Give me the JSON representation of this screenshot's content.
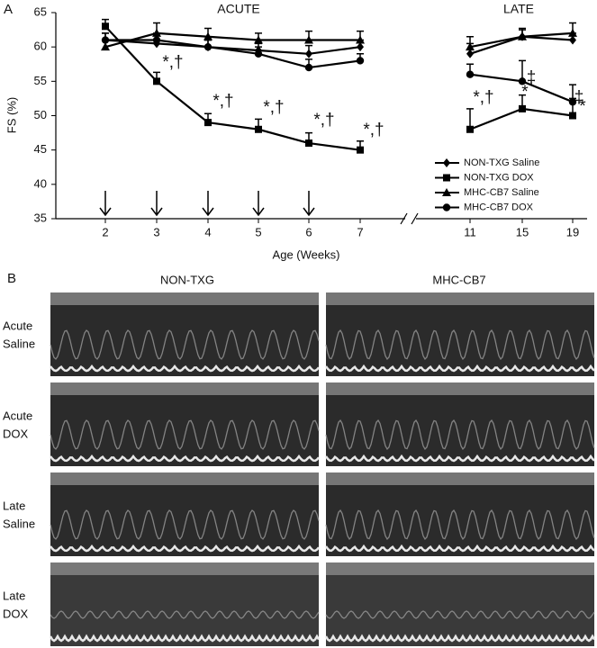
{
  "panel_a_label": "A",
  "chart_data": {
    "type": "line",
    "group_labels": [
      "ACUTE",
      "LATE"
    ],
    "ylabel": "FS (%)",
    "xlabel": "Age (Weeks)",
    "categories": [
      "2",
      "3",
      "4",
      "5",
      "6",
      "7",
      "11",
      "15",
      "19"
    ],
    "ylim": [
      35,
      65
    ],
    "yticks": [
      35,
      40,
      45,
      50,
      55,
      60,
      65
    ],
    "series": [
      {
        "name": "NON-TXG Saline",
        "marker": "diamond",
        "color": "#000000",
        "values": [
          61,
          60.5,
          60,
          59.5,
          59,
          60,
          59,
          61.5,
          61
        ],
        "errors": [
          1,
          1.2,
          1,
          1,
          1.2,
          1,
          1.5,
          1,
          1
        ]
      },
      {
        "name": "NON-TXG DOX",
        "marker": "square",
        "color": "#000000",
        "values": [
          63,
          55,
          49,
          48,
          46,
          45,
          48,
          51,
          50
        ],
        "errors": [
          1,
          1.3,
          1.3,
          1.5,
          1.5,
          1.3,
          3,
          2,
          2.5
        ]
      },
      {
        "name": "MHC-CB7 Saline",
        "marker": "triangle",
        "color": "#000000",
        "values": [
          60,
          62,
          61.5,
          61,
          61,
          61,
          60,
          61.5,
          62
        ],
        "errors": [
          1,
          1.5,
          1.2,
          1,
          1.3,
          1.3,
          1.5,
          1.2,
          1.5
        ]
      },
      {
        "name": "MHC-CB7 DOX",
        "marker": "circle",
        "color": "#000000",
        "values": [
          61,
          61,
          60,
          59,
          57,
          58,
          56,
          55,
          52
        ],
        "errors": [
          1,
          1,
          1,
          1,
          1.2,
          1,
          1.5,
          3,
          2.5
        ]
      }
    ],
    "annotations": [
      "*,†",
      "*,†",
      "*,†",
      "*,†",
      "*,†",
      "*,†",
      "‡",
      "*",
      "‡",
      "*"
    ],
    "legend": "lower right"
  },
  "panel_b": {
    "label": "B",
    "columns": [
      "NON-TXG",
      "MHC-CB7"
    ],
    "rows": [
      [
        "Acute",
        "Saline"
      ],
      [
        "Acute",
        "DOX"
      ],
      [
        "Late",
        "Saline"
      ],
      [
        "Late",
        "DOX"
      ]
    ]
  }
}
